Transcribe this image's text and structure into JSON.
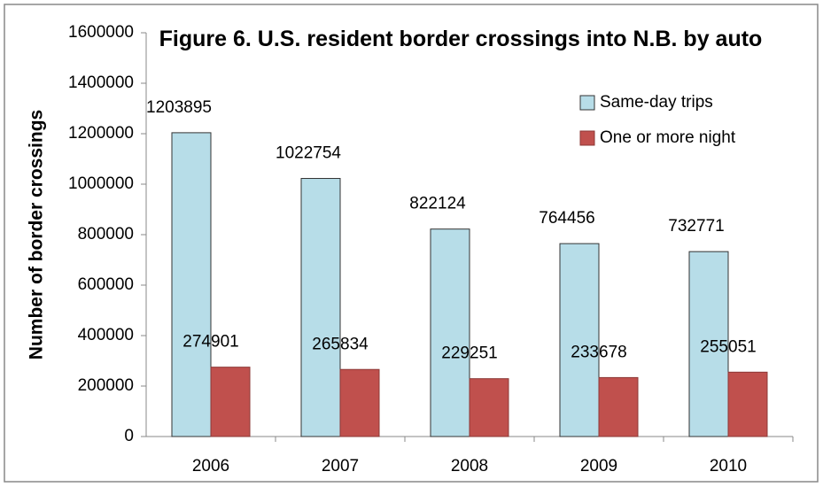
{
  "chart_data": {
    "type": "bar",
    "title": "Figure 6. U.S. resident border crossings into N.B. by auto",
    "y_label": "Number of border crossings",
    "categories": [
      "2006",
      "2007",
      "2008",
      "2009",
      "2010"
    ],
    "series": [
      {
        "name": "Same-day trips",
        "color": "#b7dde8",
        "values": [
          1203895,
          1022754,
          822124,
          764456,
          732771
        ]
      },
      {
        "name": "One or more night",
        "color": "#c0504d",
        "values": [
          274901,
          265834,
          229251,
          233678,
          255051
        ]
      }
    ],
    "ylim": [
      0,
      1600000
    ],
    "yticks": [
      0,
      200000,
      400000,
      600000,
      800000,
      1000000,
      1200000,
      1400000,
      1600000
    ],
    "legend": "top-right",
    "data_labels": true
  }
}
